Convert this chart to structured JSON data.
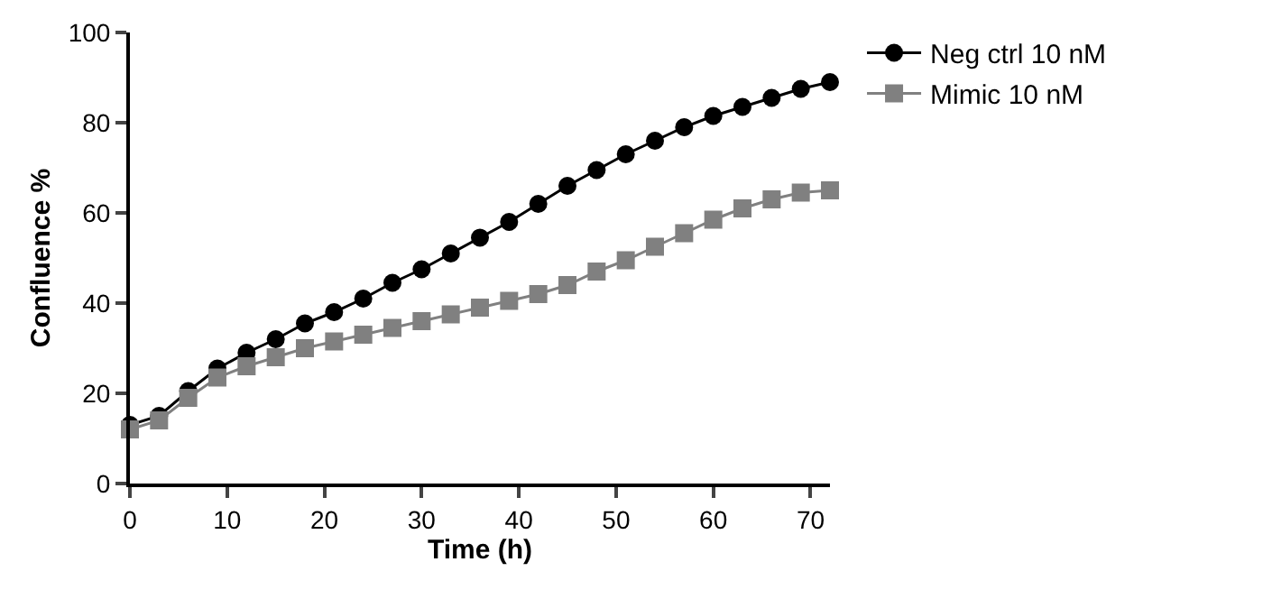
{
  "chart_data": {
    "type": "line",
    "xlabel": "Time (h)",
    "ylabel": "Confluence %",
    "x": [
      0,
      3,
      6,
      9,
      12,
      15,
      18,
      21,
      24,
      27,
      30,
      33,
      36,
      39,
      42,
      45,
      48,
      51,
      54,
      57,
      60,
      63,
      66,
      69,
      72
    ],
    "series": [
      {
        "name": "Neg ctrl 10 nM",
        "color": "#000000",
        "marker": "circle",
        "values": [
          13,
          15,
          20.5,
          25.5,
          29,
          32,
          35.5,
          38,
          41,
          44.5,
          47.5,
          51,
          54.5,
          58,
          62,
          66,
          69.5,
          73,
          76,
          79,
          81.5,
          83.5,
          85.5,
          87.5,
          89
        ]
      },
      {
        "name": "Mimic 10 nM",
        "color": "#808080",
        "marker": "square",
        "values": [
          12,
          14,
          19,
          23.5,
          26,
          28,
          30,
          31.5,
          33,
          34.5,
          36,
          37.5,
          39,
          40.5,
          42,
          44,
          47,
          49.5,
          52.5,
          55.5,
          58.5,
          61,
          63,
          64.5,
          65
        ]
      }
    ],
    "xlim": [
      0,
      72
    ],
    "xticks": [
      0,
      10,
      20,
      30,
      40,
      50,
      60,
      70
    ],
    "ylim": [
      0,
      100
    ],
    "yticks": [
      0,
      20,
      40,
      60,
      80,
      100
    ],
    "legend": "top right",
    "line_style": "solid"
  }
}
